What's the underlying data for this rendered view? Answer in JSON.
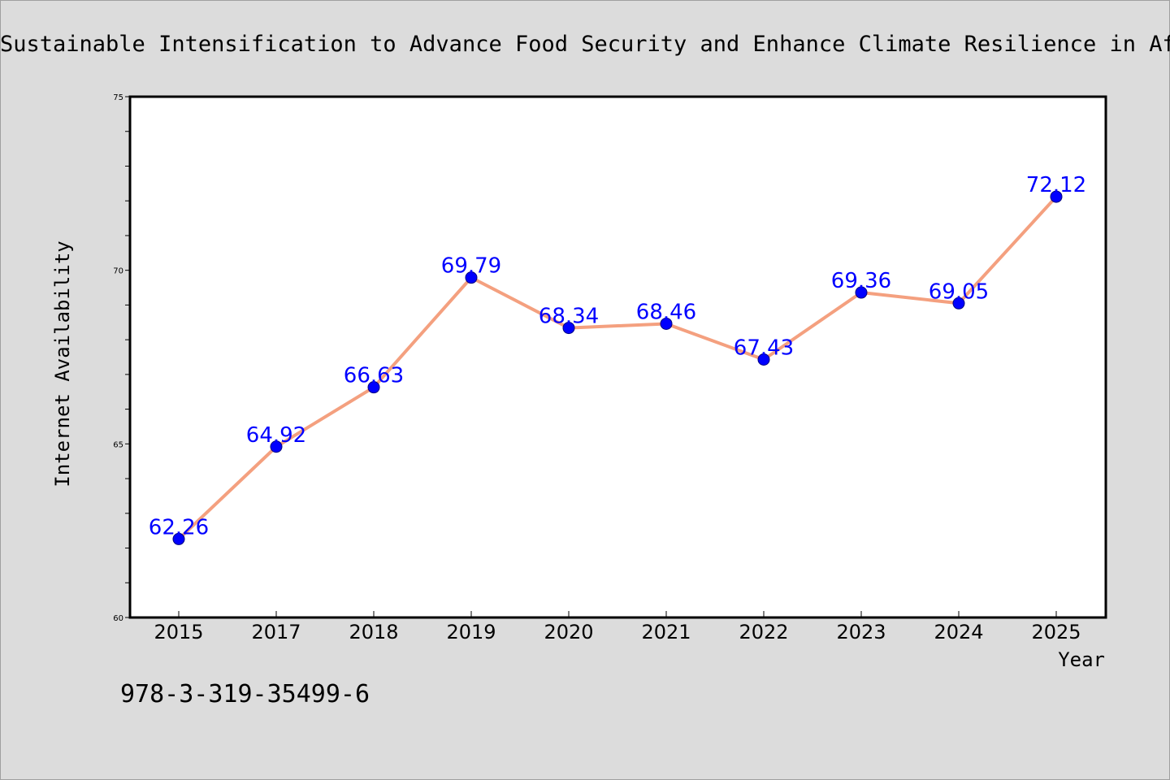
{
  "chart_data": {
    "type": "line",
    "title": "Sustainable Intensification to Advance Food Security and Enhance Climate Resilience in Africa",
    "xlabel": "Year",
    "ylabel": "Internet Availability",
    "categories": [
      "2015",
      "2017",
      "2018",
      "2019",
      "2020",
      "2021",
      "2022",
      "2023",
      "2024",
      "2025"
    ],
    "series": [
      {
        "values": [
          62.26,
          64.92,
          66.63,
          69.79,
          68.34,
          68.46,
          67.43,
          69.36,
          69.05,
          72.12
        ],
        "labels": [
          "62.26",
          "64.92",
          "66.63",
          "69.79",
          "68.34",
          "68.46",
          "67.43",
          "69.36",
          "69.05",
          "72.12"
        ]
      }
    ],
    "ylim": [
      60,
      75
    ],
    "yticks": [
      "60",
      "65",
      "70",
      "75"
    ],
    "grid": false,
    "legend": "none",
    "colors": {
      "line": "#f4a07f",
      "marker": "#0000ff",
      "label": "#0000ff",
      "background": "#dcdcdc",
      "plot_area": "#ffffff"
    }
  },
  "footer_text": "978-3-319-35499-6"
}
